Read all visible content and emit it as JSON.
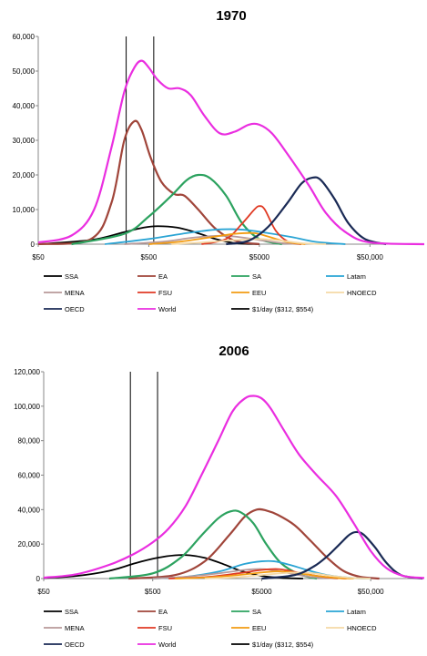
{
  "chart_data": [
    {
      "type": "line",
      "title": "1970",
      "x_scale": "log",
      "x_ticks": [
        "$50",
        "$500",
        "$5000",
        "$50,000"
      ],
      "x_tick_values": [
        50,
        500,
        5000,
        50000
      ],
      "xlim": [
        50,
        155000
      ],
      "ylim": [
        0,
        60000
      ],
      "y_ticks": [
        "0",
        "10,000",
        "20,000",
        "30,000",
        "40,000",
        "50,000",
        "60,000"
      ],
      "y_tick_values": [
        0,
        10000,
        20000,
        30000,
        40000,
        50000,
        60000
      ],
      "vlines": [
        312,
        554
      ],
      "legend_position": "bottom",
      "series": [
        {
          "name": "SSA",
          "color": "#000000",
          "points": [
            [
              50,
              0
            ],
            [
              150,
              1200
            ],
            [
              300,
              3500
            ],
            [
              450,
              4800
            ],
            [
              600,
              5200
            ],
            [
              900,
              4800
            ],
            [
              1300,
              3500
            ],
            [
              2000,
              1500
            ],
            [
              3000,
              300
            ],
            [
              5000,
              0
            ]
          ]
        },
        {
          "name": "EA",
          "color": "#a0453a",
          "points": [
            [
              50,
              0
            ],
            [
              150,
              1500
            ],
            [
              230,
              12000
            ],
            [
              300,
              30000
            ],
            [
              370,
              35500
            ],
            [
              430,
              33000
            ],
            [
              520,
              25000
            ],
            [
              650,
              18000
            ],
            [
              850,
              14500
            ],
            [
              1050,
              14000
            ],
            [
              1400,
              10000
            ],
            [
              2000,
              4500
            ],
            [
              3000,
              1000
            ],
            [
              5000,
              0
            ]
          ]
        },
        {
          "name": "SA",
          "color": "#2ca25f",
          "points": [
            [
              100,
              0
            ],
            [
              300,
              3000
            ],
            [
              500,
              8000
            ],
            [
              800,
              14000
            ],
            [
              1100,
              18500
            ],
            [
              1400,
              20000
            ],
            [
              1800,
              19000
            ],
            [
              2500,
              14000
            ],
            [
              3500,
              6000
            ],
            [
              5000,
              1500
            ],
            [
              8000,
              0
            ]
          ]
        },
        {
          "name": "Latam",
          "color": "#2aa4d4",
          "points": [
            [
              200,
              0
            ],
            [
              500,
              1500
            ],
            [
              1000,
              3000
            ],
            [
              2000,
              4200
            ],
            [
              3500,
              4200
            ],
            [
              6000,
              3200
            ],
            [
              10000,
              2000
            ],
            [
              16000,
              700
            ],
            [
              30000,
              0
            ]
          ]
        },
        {
          "name": "MENA",
          "color": "#b89a9a",
          "points": [
            [
              300,
              0
            ],
            [
              700,
              800
            ],
            [
              1200,
              1800
            ],
            [
              2000,
              2400
            ],
            [
              3000,
              2200
            ],
            [
              5000,
              1200
            ],
            [
              8000,
              300
            ],
            [
              12000,
              0
            ]
          ]
        },
        {
          "name": "FSU",
          "color": "#e03a24",
          "points": [
            [
              1500,
              0
            ],
            [
              2500,
              1500
            ],
            [
              3500,
              6000
            ],
            [
              4500,
              10000
            ],
            [
              5000,
              11000
            ],
            [
              5600,
              10000
            ],
            [
              7000,
              4000
            ],
            [
              9000,
              800
            ],
            [
              12000,
              0
            ]
          ]
        },
        {
          "name": "EEU",
          "color": "#f39c12",
          "points": [
            [
              500,
              0
            ],
            [
              1000,
              800
            ],
            [
              2000,
              2200
            ],
            [
              3000,
              3000
            ],
            [
              4500,
              3200
            ],
            [
              6000,
              2200
            ],
            [
              9000,
              600
            ],
            [
              13000,
              0
            ]
          ]
        },
        {
          "name": "HNOECD",
          "color": "#f5d9a6",
          "points": [
            [
              800,
              0
            ],
            [
              1500,
              500
            ],
            [
              3000,
              1200
            ],
            [
              5000,
              1500
            ],
            [
              8000,
              1000
            ],
            [
              12000,
              300
            ],
            [
              20000,
              0
            ]
          ]
        },
        {
          "name": "OECD",
          "color": "#1a2a55",
          "points": [
            [
              2500,
              0
            ],
            [
              4000,
              1000
            ],
            [
              6000,
              5000
            ],
            [
              9000,
              12000
            ],
            [
              12000,
              17500
            ],
            [
              15000,
              19200
            ],
            [
              18000,
              18500
            ],
            [
              24000,
              13000
            ],
            [
              32000,
              6000
            ],
            [
              45000,
              1500
            ],
            [
              70000,
              0
            ]
          ]
        },
        {
          "name": "World",
          "color": "#ea2ee0",
          "points": [
            [
              50,
              500
            ],
            [
              100,
              2500
            ],
            [
              160,
              10000
            ],
            [
              230,
              28000
            ],
            [
              300,
              44000
            ],
            [
              370,
              51000
            ],
            [
              430,
              53000
            ],
            [
              500,
              51000
            ],
            [
              600,
              47500
            ],
            [
              750,
              45000
            ],
            [
              950,
              45000
            ],
            [
              1200,
              43000
            ],
            [
              1600,
              37000
            ],
            [
              2200,
              32000
            ],
            [
              3000,
              32500
            ],
            [
              4000,
              34500
            ],
            [
              5000,
              34500
            ],
            [
              6500,
              32000
            ],
            [
              9000,
              26000
            ],
            [
              14000,
              17000
            ],
            [
              20000,
              9000
            ],
            [
              30000,
              3500
            ],
            [
              50000,
              500
            ],
            [
              155000,
              0
            ]
          ]
        },
        {
          "name": "$1/day ($312, $554)",
          "color": "#000000",
          "points": []
        }
      ]
    },
    {
      "type": "line",
      "title": "2006",
      "x_scale": "log",
      "x_ticks": [
        "$50",
        "$500",
        "$5000",
        "$50,000"
      ],
      "x_tick_values": [
        50,
        500,
        5000,
        50000
      ],
      "xlim": [
        50,
        155000
      ],
      "ylim": [
        0,
        120000
      ],
      "y_ticks": [
        "0",
        "20,000",
        "40,000",
        "60,000",
        "80,000",
        "100,000",
        "120,000"
      ],
      "y_tick_values": [
        0,
        20000,
        40000,
        60000,
        80000,
        100000,
        120000
      ],
      "vlines": [
        312,
        554
      ],
      "legend_position": "bottom",
      "series": [
        {
          "name": "SSA",
          "color": "#000000",
          "points": [
            [
              50,
              300
            ],
            [
              100,
              1500
            ],
            [
              200,
              4500
            ],
            [
              350,
              9000
            ],
            [
              550,
              12000
            ],
            [
              800,
              13500
            ],
            [
              1100,
              13500
            ],
            [
              1500,
              12000
            ],
            [
              2200,
              8500
            ],
            [
              3200,
              4500
            ],
            [
              5000,
              1500
            ],
            [
              8000,
              300
            ],
            [
              12000,
              0
            ]
          ]
        },
        {
          "name": "EA",
          "color": "#a0453a",
          "points": [
            [
              300,
              0
            ],
            [
              800,
              2000
            ],
            [
              1500,
              10000
            ],
            [
              2500,
              25000
            ],
            [
              3500,
              36000
            ],
            [
              4500,
              40000
            ],
            [
              5500,
              39500
            ],
            [
              7000,
              37000
            ],
            [
              10000,
              31000
            ],
            [
              14000,
              22000
            ],
            [
              20000,
              12000
            ],
            [
              28000,
              4500
            ],
            [
              40000,
              1000
            ],
            [
              60000,
              0
            ]
          ]
        },
        {
          "name": "SA",
          "color": "#2ca25f",
          "points": [
            [
              200,
              0
            ],
            [
              500,
              3000
            ],
            [
              900,
              12000
            ],
            [
              1400,
              25000
            ],
            [
              2000,
              35000
            ],
            [
              2600,
              39000
            ],
            [
              3200,
              38500
            ],
            [
              4200,
              32000
            ],
            [
              5500,
              20000
            ],
            [
              7500,
              9000
            ],
            [
              11000,
              2500
            ],
            [
              16000,
              0
            ]
          ]
        },
        {
          "name": "Latam",
          "color": "#2aa4d4",
          "points": [
            [
              500,
              0
            ],
            [
              1000,
              1000
            ],
            [
              2000,
              4000
            ],
            [
              3500,
              8500
            ],
            [
              5000,
              10000
            ],
            [
              6500,
              10000
            ],
            [
              9000,
              8000
            ],
            [
              13000,
              5000
            ],
            [
              20000,
              2000
            ],
            [
              35000,
              300
            ],
            [
              50000,
              0
            ]
          ]
        },
        {
          "name": "MENA",
          "color": "#b89a9a",
          "points": [
            [
              500,
              0
            ],
            [
              1000,
              1000
            ],
            [
              2000,
              3000
            ],
            [
              3500,
              5000
            ],
            [
              5000,
              5500
            ],
            [
              7000,
              4500
            ],
            [
              10000,
              2500
            ],
            [
              15000,
              800
            ],
            [
              25000,
              0
            ]
          ]
        },
        {
          "name": "FSU",
          "color": "#e03a24",
          "points": [
            [
              700,
              0
            ],
            [
              1500,
              800
            ],
            [
              3000,
              3000
            ],
            [
              5000,
              5000
            ],
            [
              7000,
              5500
            ],
            [
              9000,
              4500
            ],
            [
              13000,
              2500
            ],
            [
              20000,
              700
            ],
            [
              30000,
              0
            ]
          ]
        },
        {
          "name": "EEU",
          "color": "#f39c12",
          "points": [
            [
              800,
              0
            ],
            [
              1500,
              600
            ],
            [
              3000,
              2000
            ],
            [
              5000,
              3500
            ],
            [
              7000,
              4200
            ],
            [
              10000,
              3500
            ],
            [
              15000,
              1800
            ],
            [
              25000,
              300
            ],
            [
              35000,
              0
            ]
          ]
        },
        {
          "name": "HNOECD",
          "color": "#f5d9a6",
          "points": [
            [
              1500,
              0
            ],
            [
              3000,
              800
            ],
            [
              6000,
              2500
            ],
            [
              10000,
              3500
            ],
            [
              15000,
              3000
            ],
            [
              22000,
              1500
            ],
            [
              35000,
              300
            ],
            [
              50000,
              0
            ]
          ]
        },
        {
          "name": "OECD",
          "color": "#1a2a55",
          "points": [
            [
              5000,
              0
            ],
            [
              10000,
              2000
            ],
            [
              15000,
              7000
            ],
            [
              20000,
              13000
            ],
            [
              26000,
              20000
            ],
            [
              32000,
              25500
            ],
            [
              37000,
              27000
            ],
            [
              43000,
              25500
            ],
            [
              55000,
              18000
            ],
            [
              70000,
              9000
            ],
            [
              95000,
              2000
            ],
            [
              150000,
              0
            ]
          ]
        },
        {
          "name": "World",
          "color": "#ea2ee0",
          "points": [
            [
              50,
              500
            ],
            [
              100,
              2500
            ],
            [
              200,
              8000
            ],
            [
              330,
              14000
            ],
            [
              500,
              21000
            ],
            [
              700,
              29000
            ],
            [
              1000,
              42000
            ],
            [
              1400,
              60000
            ],
            [
              2000,
              80000
            ],
            [
              2700,
              97000
            ],
            [
              3500,
              104500
            ],
            [
              4200,
              106000
            ],
            [
              5000,
              104500
            ],
            [
              6000,
              99000
            ],
            [
              8000,
              86000
            ],
            [
              11000,
              72000
            ],
            [
              16000,
              60000
            ],
            [
              24000,
              48000
            ],
            [
              35000,
              32000
            ],
            [
              50000,
              16000
            ],
            [
              70000,
              6000
            ],
            [
              100000,
              1500
            ],
            [
              155000,
              300
            ]
          ]
        },
        {
          "name": "$1/day ($312, $554)",
          "color": "#000000",
          "points": []
        }
      ]
    }
  ]
}
